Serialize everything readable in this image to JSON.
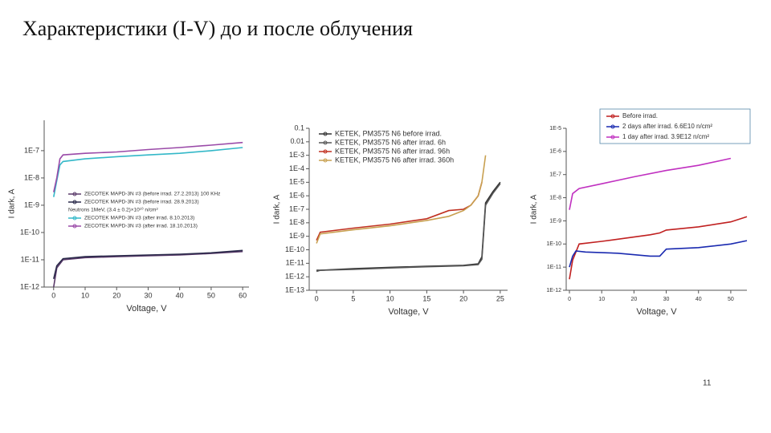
{
  "title": "Характеристики (I-V) до и после облучения",
  "page_number": "11",
  "chart_data": [
    {
      "type": "line",
      "log_y": true,
      "legend": "center",
      "x_label": "Voltage, V",
      "y_label": "I dark, A",
      "legend_note": "Neutrons 1MeV, (3.4 ± 0.2)×10¹⁰ n/cm²",
      "xlim": [
        -3,
        62
      ],
      "xticks": [
        0,
        10,
        20,
        30,
        40,
        50,
        60
      ],
      "ylim": [
        1e-12,
        1.3e-06
      ],
      "yticks": [
        {
          "value": 1e-12,
          "label": "1E-12"
        },
        {
          "value": 1e-11,
          "label": "1E-11"
        },
        {
          "value": 1e-10,
          "label": "1E-10"
        },
        {
          "value": 1e-09,
          "label": "1E-9"
        },
        {
          "value": 1e-08,
          "label": "1E-8"
        },
        {
          "value": 1e-07,
          "label": "1E-7"
        }
      ],
      "series": [
        {
          "name": "ZECOTEK MAPD-3N #3 (before irrad. 27.2.2013) 100 KHz",
          "color": "#5a3a6a",
          "x": [
            0,
            1,
            3,
            10,
            20,
            30,
            40,
            50,
            60
          ],
          "values": [
            1e-12,
            5e-12,
            1e-11,
            1.2e-11,
            1.3e-11,
            1.4e-11,
            1.5e-11,
            1.7e-11,
            2e-11
          ]
        },
        {
          "name": "ZECOTEK MAPD-3N #3 (before irrad. 28.9.2013)",
          "color": "#2a2a4a",
          "x": [
            0,
            1,
            3,
            10,
            20,
            30,
            40,
            50,
            60
          ],
          "values": [
            2e-12,
            6e-12,
            1.1e-11,
            1.3e-11,
            1.4e-11,
            1.5e-11,
            1.6e-11,
            1.8e-11,
            2.2e-11
          ]
        },
        {
          "name": "ZECOTEK MAPD-3N #3 (after irrad. 8.10.2013)",
          "color": "#33b8c8",
          "x": [
            0,
            1,
            2,
            3,
            10,
            20,
            30,
            40,
            50,
            60
          ],
          "values": [
            2e-09,
            8e-09,
            3e-08,
            4e-08,
            5e-08,
            6e-08,
            7e-08,
            8e-08,
            1e-07,
            1.3e-07
          ]
        },
        {
          "name": "ZECOTEK MAPD-3N #3 (after irrad. 18.10.2013)",
          "color": "#9a4aa8",
          "x": [
            0,
            1,
            2,
            3,
            10,
            20,
            30,
            40,
            50,
            60
          ],
          "values": [
            3e-09,
            1e-08,
            5e-08,
            7e-08,
            8e-08,
            9e-08,
            1.1e-07,
            1.3e-07,
            1.6e-07,
            2e-07
          ]
        }
      ]
    },
    {
      "type": "line",
      "log_y": true,
      "legend": "upper right",
      "x_label": "Voltage, V",
      "y_label": "I dark, A",
      "xlim": [
        -1,
        26
      ],
      "xticks": [
        0,
        5,
        10,
        15,
        20,
        25
      ],
      "ylim": [
        1e-13,
        0.1
      ],
      "yticks": [
        0.1,
        0.01,
        {
          "value": 0.001,
          "label": "1E-3"
        },
        {
          "value": 0.0001,
          "label": "1E-4"
        },
        {
          "value": 1e-05,
          "label": "1E-5"
        },
        {
          "value": 1e-06,
          "label": "1E-6"
        },
        {
          "value": 1e-07,
          "label": "1E-7"
        },
        {
          "value": 1e-08,
          "label": "1E-8"
        },
        {
          "value": 1e-09,
          "label": "1E-9"
        },
        {
          "value": 1e-10,
          "label": "1E-10"
        },
        {
          "value": 1e-11,
          "label": "1E-11"
        },
        {
          "value": 1e-12,
          "label": "1E-12"
        },
        {
          "value": 1e-13,
          "label": "1E-13"
        }
      ],
      "series": [
        {
          "name": "KETEK, PM3575 N6 before irrad.",
          "color": "#333333",
          "x": [
            0,
            0.5,
            5,
            10,
            15,
            20,
            22,
            22.5,
            23,
            24,
            25
          ],
          "values": [
            3e-12,
            3e-12,
            4e-12,
            5e-12,
            6e-12,
            7e-12,
            9e-12,
            3e-11,
            3e-07,
            2e-06,
            1e-05
          ]
        },
        {
          "name": "KETEK, PM3575 N6 after irrad. 6h",
          "color": "#555555",
          "x": [
            0,
            0.5,
            5,
            10,
            15,
            20,
            22,
            22.5,
            23,
            24,
            25
          ],
          "values": [
            2.5e-12,
            3e-12,
            3.5e-12,
            4.5e-12,
            5.5e-12,
            6.5e-12,
            8e-12,
            2e-11,
            2e-07,
            1.5e-06,
            8e-06
          ]
        },
        {
          "name": "KETEK, PM3575 N6 after irrad. 96h",
          "color": "#c03020",
          "x": [
            0,
            0.5,
            5,
            10,
            15,
            18,
            20,
            21,
            22,
            22.5
          ],
          "values": [
            5e-10,
            2e-09,
            4e-09,
            8e-09,
            2e-08,
            8e-08,
            1e-07,
            2e-07,
            1e-06,
            1e-05
          ]
        },
        {
          "name": "KETEK, PM3575 N6 after irrad. 360h",
          "color": "#c8a050",
          "x": [
            0,
            0.5,
            5,
            10,
            15,
            18,
            20,
            21,
            22,
            22.5,
            23
          ],
          "values": [
            3e-10,
            1.5e-09,
            3e-09,
            6e-09,
            1.5e-08,
            3e-08,
            8e-08,
            2e-07,
            1e-06,
            1e-05,
            0.001
          ]
        }
      ]
    },
    {
      "type": "line",
      "log_y": true,
      "legend": "above",
      "x_label": "Voltage, V",
      "y_label": "I dark, A",
      "xlim": [
        -1,
        55
      ],
      "xticks": [
        0,
        10,
        20,
        30,
        40,
        50
      ],
      "ylim": [
        1e-12,
        1e-05
      ],
      "yticks": [
        {
          "value": 1e-05,
          "label": "1E-5"
        },
        {
          "value": 1e-06,
          "label": "1E-6"
        },
        {
          "value": 1e-07,
          "label": "1E-7"
        },
        {
          "value": 1e-08,
          "label": "1E-8"
        },
        {
          "value": 1e-09,
          "label": "1E-9"
        },
        {
          "value": 1e-10,
          "label": "1E-10"
        },
        {
          "value": 1e-11,
          "label": "1E-11"
        },
        {
          "value": 1e-12,
          "label": "1E-12"
        }
      ],
      "series": [
        {
          "name": "Before irrad.",
          "color": "#c02020",
          "x": [
            0,
            1,
            3,
            10,
            20,
            25,
            28,
            30,
            40,
            50,
            55
          ],
          "values": [
            3e-12,
            2e-11,
            1e-10,
            1.3e-10,
            2e-10,
            2.5e-10,
            3e-10,
            4e-10,
            5.5e-10,
            9e-10,
            1.5e-09
          ]
        },
        {
          "name": "2 days after irrad. 6.6E10 n/cm²",
          "color": "#1a2ab0",
          "x": [
            0,
            1,
            2,
            5,
            15,
            25,
            28,
            30,
            40,
            50,
            55
          ],
          "values": [
            1e-11,
            3e-11,
            5e-11,
            4.5e-11,
            4e-11,
            3e-11,
            3e-11,
            6e-11,
            7e-11,
            1e-10,
            1.4e-10
          ]
        },
        {
          "name": "1 day after irrad. 3.9E12 n/cm²",
          "color": "#c030c0",
          "x": [
            0,
            1,
            3,
            10,
            20,
            30,
            40,
            50
          ],
          "values": [
            3e-09,
            1.5e-08,
            2.5e-08,
            4e-08,
            8e-08,
            1.5e-07,
            2.5e-07,
            5e-07
          ]
        }
      ]
    }
  ]
}
